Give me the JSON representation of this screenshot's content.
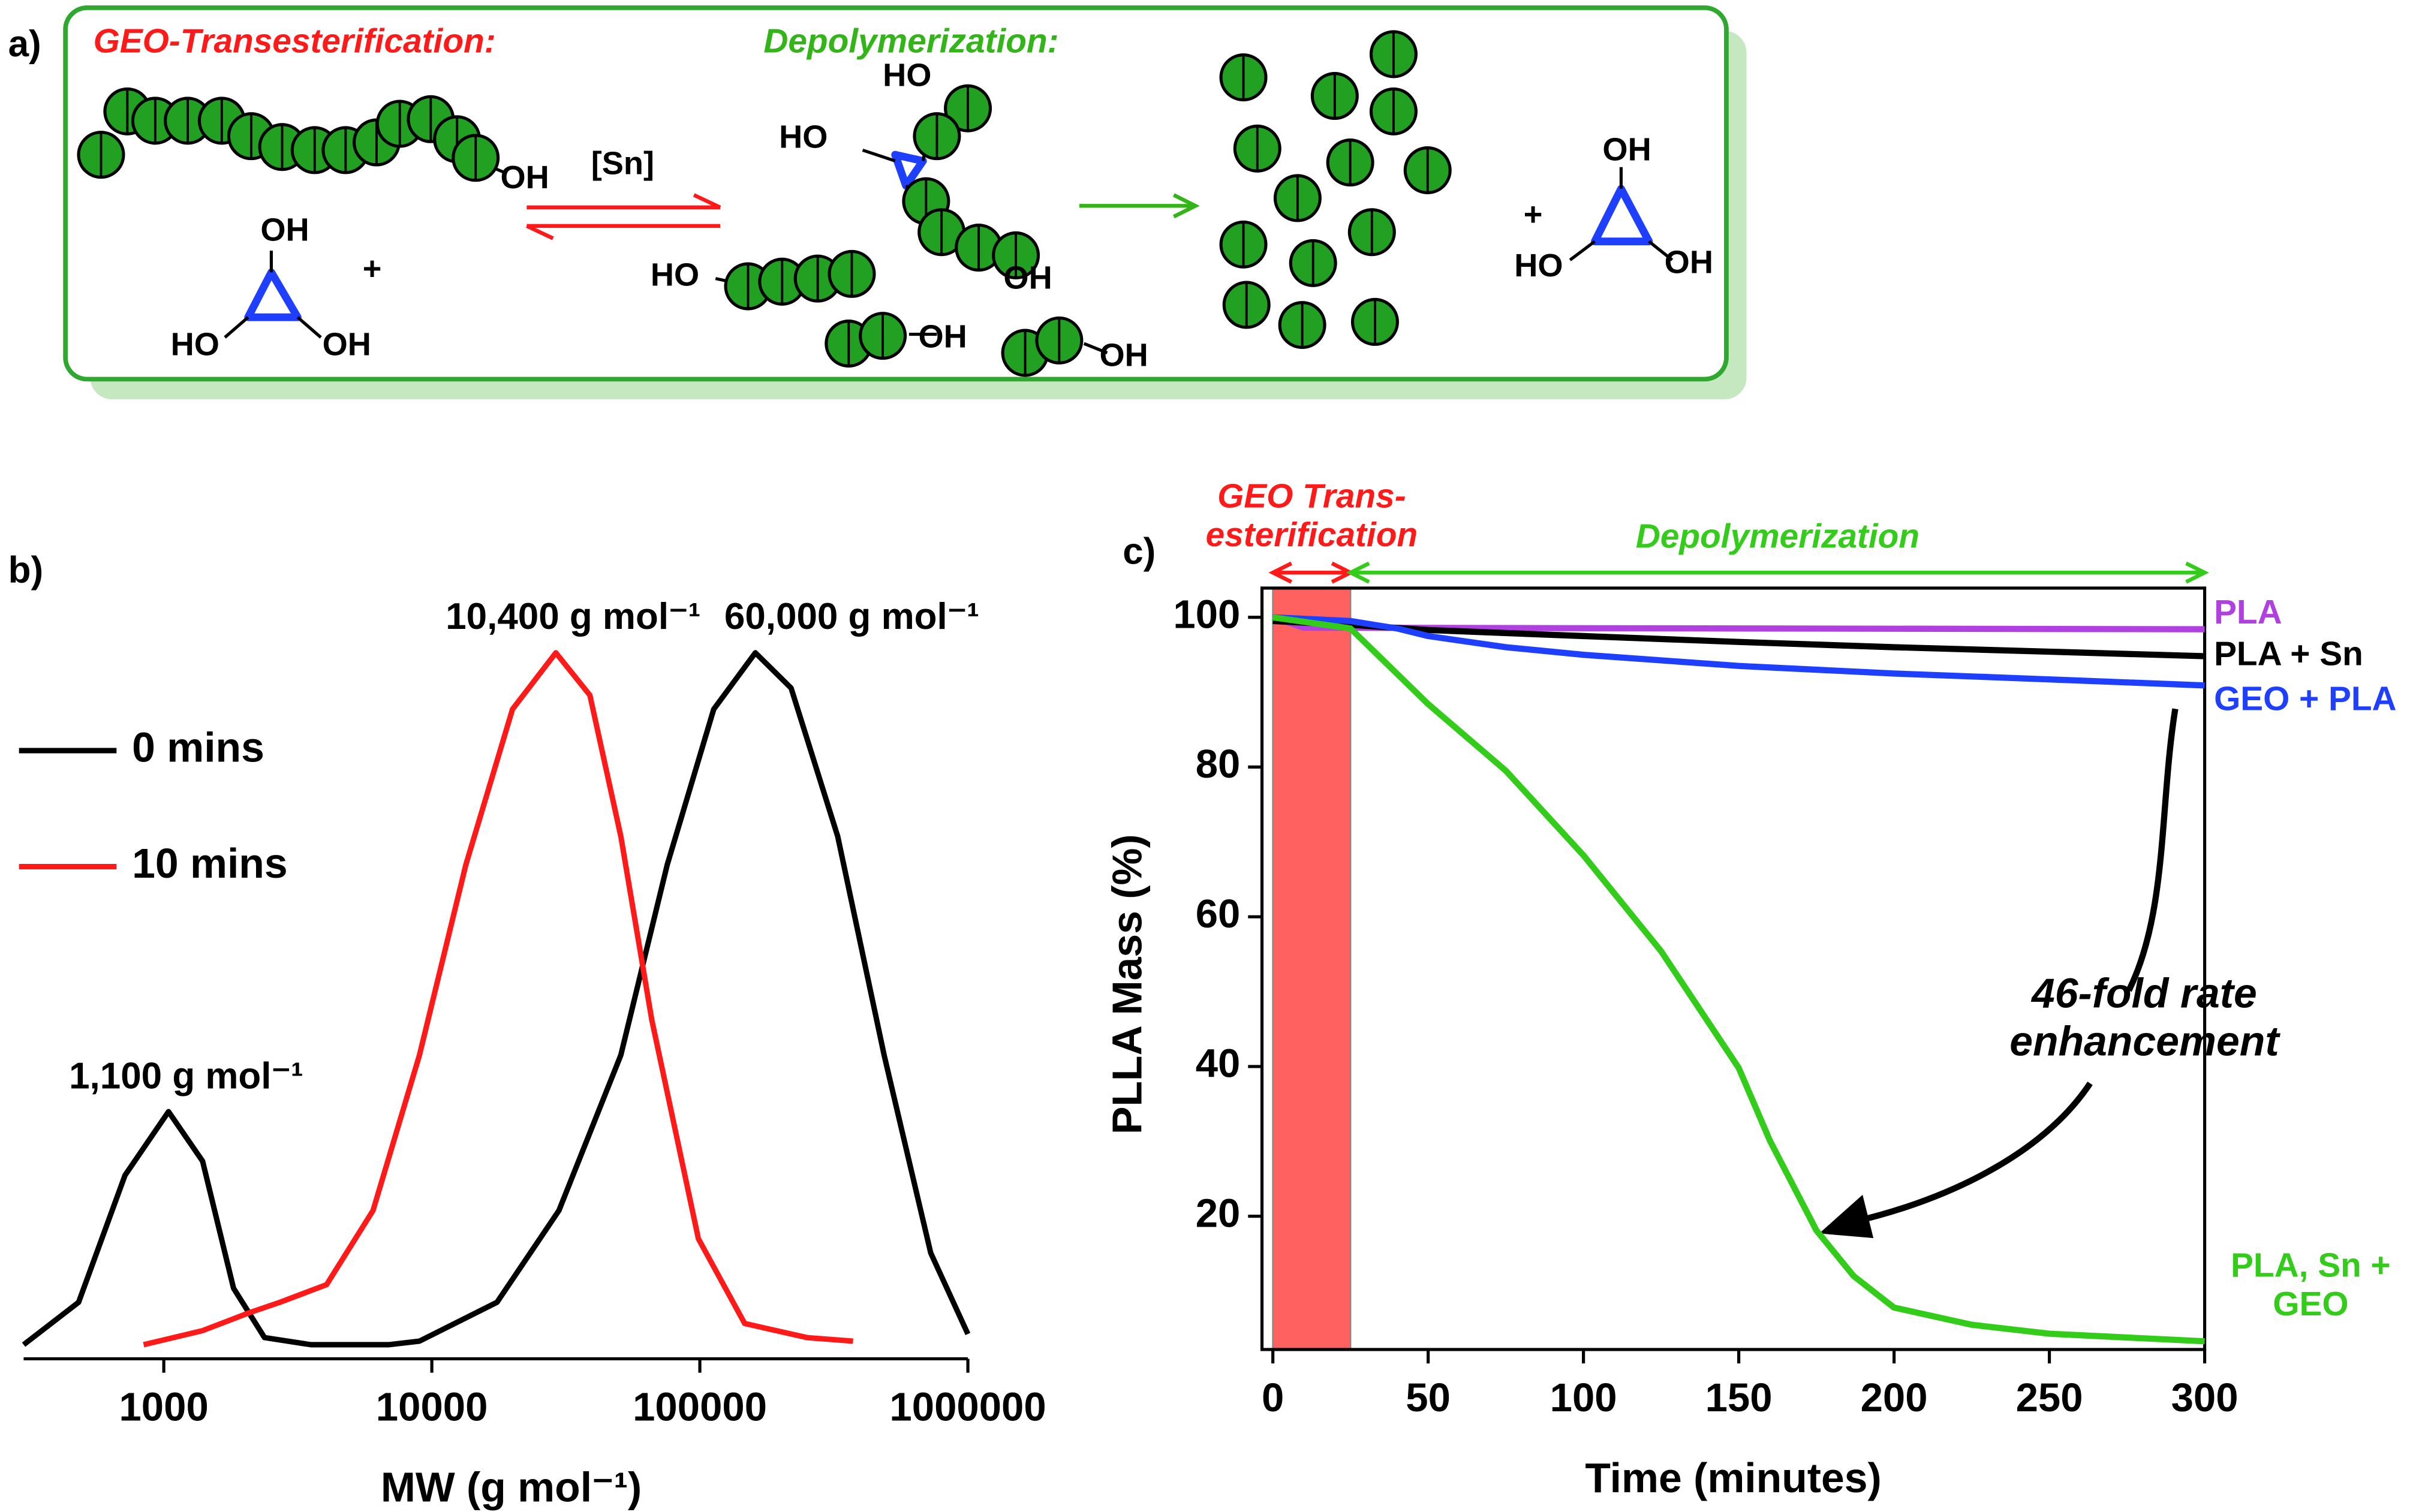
{
  "schematic": {
    "panel_label": "a)",
    "step_labels": [
      "GEO-Transesterification:",
      "Depolymerization:"
    ],
    "catalyst": "[Sn]",
    "hydroxyl_labels": [
      "OH",
      "OH",
      "HO",
      "OH",
      "HO",
      "HO",
      "OH",
      "HO",
      "OH",
      "OH",
      "OH",
      "HO",
      "OH"
    ],
    "plus_signs": [
      "+",
      "+"
    ]
  },
  "chart_data": [
    {
      "type": "line",
      "panel_label": "b)",
      "xscale": "log",
      "x_label": "MW (g mol⁻¹)",
      "xlim": [
        300,
        1000000
      ],
      "ylim": [
        0,
        1.05
      ],
      "xticks": [
        1000,
        10000,
        100000,
        1000000
      ],
      "annotations": [
        "1,100 g mol⁻¹",
        "10,400 g mol⁻¹",
        "60,000 g mol⁻¹"
      ],
      "series": [
        {
          "name": "0 mins",
          "color": "#000000",
          "x": [
            300,
            481,
            717,
            1041,
            1395,
            1820,
            2375,
            3540,
            6890,
            8990,
            17500,
            29800,
            50700,
            75600,
            112700,
            161000,
            219000,
            327000,
            487000,
            727000,
            1000000
          ],
          "values": [
            0.02,
            0.08,
            0.26,
            0.35,
            0.28,
            0.1,
            0.03,
            0.02,
            0.02,
            0.025,
            0.08,
            0.21,
            0.43,
            0.7,
            0.92,
            1.0,
            0.95,
            0.74,
            0.43,
            0.15,
            0.035
          ]
        },
        {
          "name": "10 mins",
          "color": "#ff1a1a",
          "x": [
            841,
            1395,
            2080,
            2710,
            4050,
            6030,
            8990,
            13400,
            20000,
            29000,
            38900,
            50700,
            66200,
            98700,
            147000,
            251000,
            373000
          ],
          "values": [
            0.02,
            0.04,
            0.065,
            0.08,
            0.105,
            0.21,
            0.43,
            0.7,
            0.92,
            1.0,
            0.94,
            0.74,
            0.48,
            0.17,
            0.05,
            0.03,
            0.025
          ]
        }
      ]
    },
    {
      "type": "line",
      "panel_label": "c)",
      "x_label": "Time (minutes)",
      "y_label": "PLLA Mass (%)",
      "xlim": [
        -3.5,
        300
      ],
      "ylim": [
        2.2,
        103.9
      ],
      "xticks": [
        0,
        50,
        100,
        150,
        200,
        250,
        300
      ],
      "yticks": [
        20,
        40,
        60,
        80,
        100
      ],
      "phases": [
        {
          "label": "GEO Trans-esterification",
          "start": 0,
          "end": 25,
          "color": "#ff1a1a"
        },
        {
          "label": "Depolymerization",
          "start": 25,
          "end": 300,
          "color": "#33cc1a"
        }
      ],
      "annotations": [
        "46-fold rate enhancement"
      ],
      "series": [
        {
          "name": "PLA",
          "color": "#b040e0",
          "x": [
            0,
            10,
            300
          ],
          "values": [
            100,
            98.6,
            98.4
          ]
        },
        {
          "name": "PLA + Sn",
          "color": "#000000",
          "x": [
            0,
            25,
            50,
            100,
            150,
            200,
            250,
            300
          ],
          "values": [
            99.5,
            99,
            98.3,
            97.5,
            96.7,
            96,
            95.4,
            94.8
          ]
        },
        {
          "name": "GEO + PLA",
          "color": "#1f3fff",
          "x": [
            0,
            25,
            40,
            50,
            75,
            100,
            150,
            200,
            250,
            300
          ],
          "values": [
            100,
            99.5,
            98.5,
            97.5,
            96,
            95,
            93.5,
            92.5,
            91.7,
            90.9
          ]
        },
        {
          "name": "PLA, Sn + GEO",
          "color": "#33cc1a",
          "x": [
            0,
            25,
            50,
            75,
            100,
            125,
            150,
            160,
            175,
            187,
            200,
            225,
            250,
            300
          ],
          "values": [
            100,
            98.5,
            88.4,
            79.5,
            68.2,
            55.4,
            39.8,
            30.1,
            18.1,
            12,
            7.8,
            5.5,
            4.3,
            3.3
          ]
        }
      ]
    }
  ]
}
